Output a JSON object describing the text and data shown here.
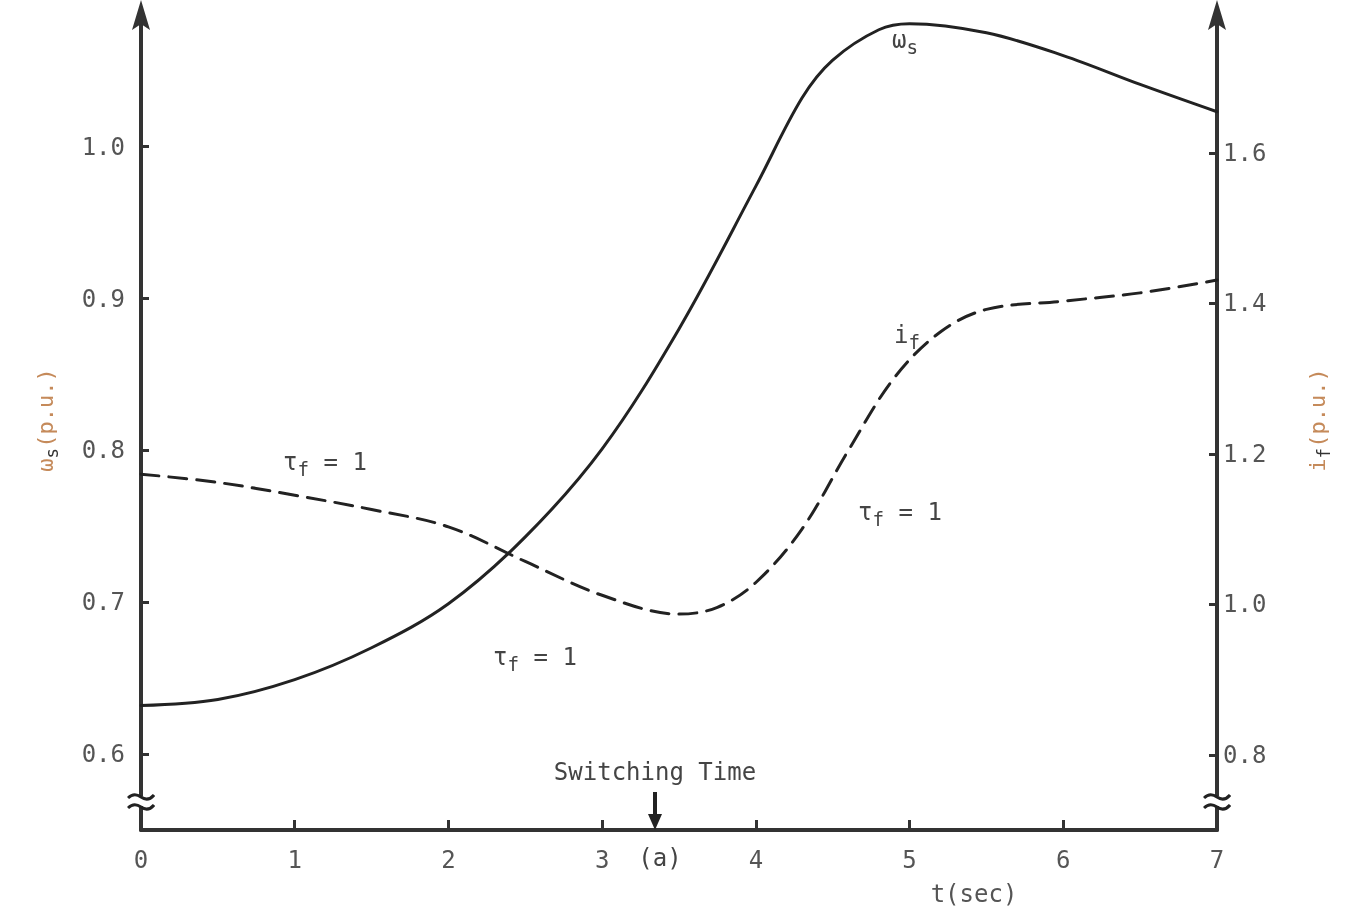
{
  "chart_data": {
    "type": "line",
    "xlabel": "t(sec)",
    "ylabel": "ω$_{s}$(p.u.)",
    "y2label": "i$_{f}$(p.u.)",
    "x": [
      0,
      0.5,
      1,
      1.5,
      2,
      2.5,
      3,
      3.5,
      4,
      4.3,
      4.5,
      4.8,
      5,
      5.5,
      6,
      6.5,
      7
    ],
    "series": [
      {
        "axis": "y",
        "line_style": "solid",
        "color": "#222222",
        "values": [
          0.632,
          0.636,
          0.649,
          0.67,
          0.699,
          0.743,
          0.801,
          0.88,
          0.974,
          1.032,
          1.057,
          1.077,
          1.081,
          1.075,
          1.06,
          1.041,
          1.023
        ]
      },
      {
        "axis": "y2",
        "line_style": "dashed",
        "color": "#222222",
        "x": [
          0,
          0.5,
          1,
          1.5,
          2,
          2.5,
          3,
          3.5,
          3.75,
          4,
          4.3,
          4.6,
          4.9,
          5.2,
          5.5,
          6,
          6.5,
          7
        ],
        "values": [
          1.173,
          1.162,
          1.145,
          1.126,
          1.103,
          1.057,
          1.012,
          0.987,
          0.996,
          1.029,
          1.1,
          1.204,
          1.301,
          1.362,
          1.392,
          1.403,
          1.414,
          1.431
        ]
      }
    ],
    "xlim": [
      0,
      7
    ],
    "xticks": [
      0,
      1,
      2,
      3,
      4,
      5,
      6,
      7
    ],
    "ylim": [
      0.55,
      1.09
    ],
    "yticks": [
      {
        "value": 0.6,
        "label": "0.6"
      },
      {
        "value": 0.7,
        "label": "0.7"
      },
      {
        "value": 0.8,
        "label": "0.8"
      },
      {
        "value": 0.9,
        "label": "0.9"
      },
      {
        "value": 1.0,
        "label": "1.0"
      }
    ],
    "y2lim": [
      0.7,
      1.79
    ],
    "y2ticks": [
      {
        "value": 0.8,
        "label": "0.8"
      },
      {
        "value": 1.0,
        "label": "1.0"
      },
      {
        "value": 1.2,
        "label": "1.2"
      },
      {
        "value": 1.4,
        "label": "1.4"
      },
      {
        "value": 1.6,
        "label": "1.6"
      }
    ],
    "grid": false,
    "marker": "none",
    "annotations": [
      "ω$_{s}$",
      "i$_{f}$",
      "τ$_{f}$ = 1",
      "τ$_{f}$ = 1",
      "τ$_{f}$ = 1",
      "Switching Time",
      "(a)"
    ]
  }
}
